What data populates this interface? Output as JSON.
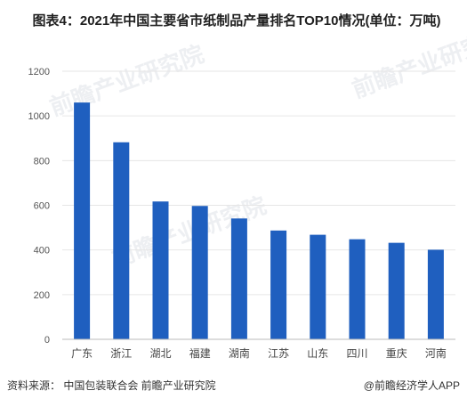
{
  "title": "图表4：2021年中国主要省市纸制品产量排名TOP10情况(单位：万吨)",
  "source": "资料来源：  中国包装联合会 前瞻产业研究院",
  "brand": "@前瞻经济学人APP",
  "watermark": "前瞻产业研究院",
  "colors": {
    "bar": "#1f5fbf",
    "grid": "#e6e6e6",
    "axis": "#bbbbbb",
    "tick_text": "#555555"
  },
  "chart_data": {
    "type": "bar",
    "categories": [
      "广东",
      "浙江",
      "湖北",
      "福建",
      "湖南",
      "江苏",
      "山东",
      "四川",
      "重庆",
      "河南"
    ],
    "values": [
      1060,
      882,
      617,
      597,
      541,
      487,
      468,
      448,
      432,
      401
    ],
    "ylim": [
      0,
      1200
    ],
    "yticks": [
      0,
      200,
      400,
      600,
      800,
      1000,
      1200
    ],
    "grid": true,
    "xlabel": "",
    "ylabel": ""
  }
}
